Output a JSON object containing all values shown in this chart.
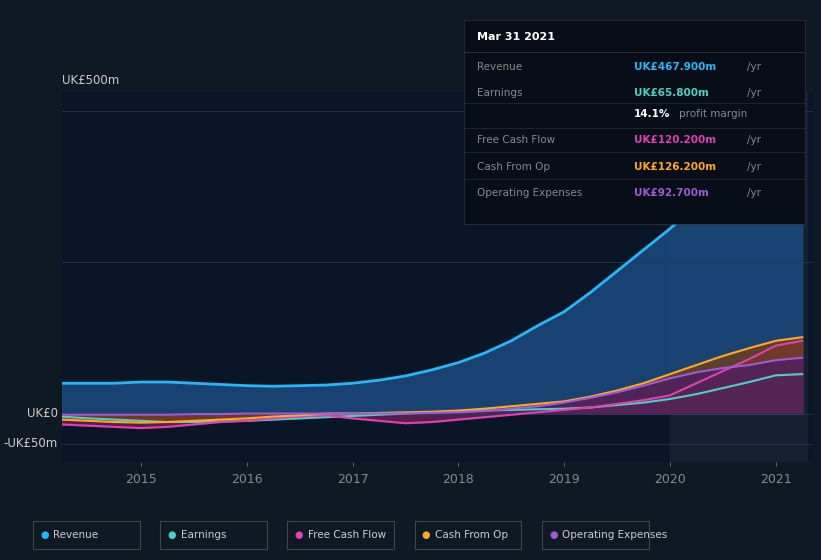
{
  "background_color": "#0f1923",
  "plot_bg_color": "#0a1628",
  "ylabel_top": "UK£500m",
  "ylabel_zero": "UK£0",
  "ylabel_neg": "-UK£50m",
  "x_labels": [
    "2015",
    "2016",
    "2017",
    "2018",
    "2019",
    "2020",
    "2021"
  ],
  "x_tick_positions": [
    2015.0,
    2016.0,
    2017.0,
    2018.0,
    2019.0,
    2020.0,
    2021.0
  ],
  "years": [
    2014.25,
    2014.5,
    2014.75,
    2015.0,
    2015.25,
    2015.5,
    2015.75,
    2016.0,
    2016.25,
    2016.5,
    2016.75,
    2017.0,
    2017.25,
    2017.5,
    2017.75,
    2018.0,
    2018.25,
    2018.5,
    2018.75,
    2019.0,
    2019.25,
    2019.5,
    2019.75,
    2020.0,
    2020.25,
    2020.5,
    2020.75,
    2021.0,
    2021.25
  ],
  "revenue": [
    50,
    50,
    50,
    52,
    52,
    50,
    48,
    46,
    45,
    46,
    47,
    50,
    55,
    62,
    72,
    84,
    100,
    120,
    145,
    168,
    200,
    235,
    270,
    305,
    345,
    385,
    420,
    460,
    467
  ],
  "earnings": [
    -5,
    -8,
    -10,
    -12,
    -14,
    -14,
    -13,
    -12,
    -10,
    -8,
    -6,
    -4,
    -2,
    0,
    2,
    4,
    5,
    6,
    7,
    8,
    10,
    14,
    18,
    24,
    32,
    42,
    52,
    63,
    65
  ],
  "free_cash_flow": [
    -18,
    -20,
    -22,
    -24,
    -22,
    -18,
    -14,
    -12,
    -8,
    -5,
    -3,
    -8,
    -12,
    -16,
    -14,
    -10,
    -6,
    -2,
    2,
    6,
    10,
    16,
    22,
    30,
    50,
    70,
    90,
    112,
    120
  ],
  "cash_from_op": [
    -10,
    -12,
    -14,
    -15,
    -14,
    -12,
    -10,
    -8,
    -5,
    -3,
    0,
    0,
    1,
    2,
    3,
    5,
    8,
    12,
    16,
    20,
    28,
    38,
    50,
    65,
    80,
    95,
    108,
    120,
    126
  ],
  "op_expenses": [
    -2,
    -2,
    -2,
    -2,
    -2,
    -1,
    -1,
    0,
    0,
    0,
    0,
    0,
    0,
    0,
    1,
    2,
    4,
    8,
    12,
    18,
    26,
    35,
    46,
    58,
    68,
    75,
    80,
    88,
    92
  ],
  "revenue_color": "#29b6f6",
  "earnings_color": "#4dd0c4",
  "free_cash_flow_color": "#e040b0",
  "cash_from_op_color": "#ffa726",
  "op_expenses_color": "#9c5cd4",
  "revenue_fill_color": "#1a4a80",
  "earnings_fill_color": "#1a5a6a",
  "free_cash_flow_fill_color": "#7a2060",
  "cash_from_op_fill_color": "#7a4010",
  "op_expenses_fill_color": "#4a1a6a",
  "highlight_x_start": 2020.0,
  "highlight_x_end": 2021.3,
  "highlight_color": "#162030",
  "grid_color": "#1e3a5f",
  "ylim_min": -80,
  "ylim_max": 530,
  "xlim_min": 2014.25,
  "xlim_max": 2021.35,
  "legend_items": [
    "Revenue",
    "Earnings",
    "Free Cash Flow",
    "Cash From Op",
    "Operating Expenses"
  ],
  "legend_colors": [
    "#29b6f6",
    "#4dd0c4",
    "#e040b0",
    "#ffa726",
    "#9c5cd4"
  ],
  "table_bg": "#080e18",
  "table_header_color": "#ffffff",
  "table_label_color": "#888888",
  "table_value_revenue": "#29b6f6",
  "table_value_earnings": "#4dd0c4",
  "table_value_margin": "#ffffff",
  "table_value_fcf": "#e040b0",
  "table_value_cfo": "#ffa726",
  "table_value_opex": "#9c5cd4"
}
